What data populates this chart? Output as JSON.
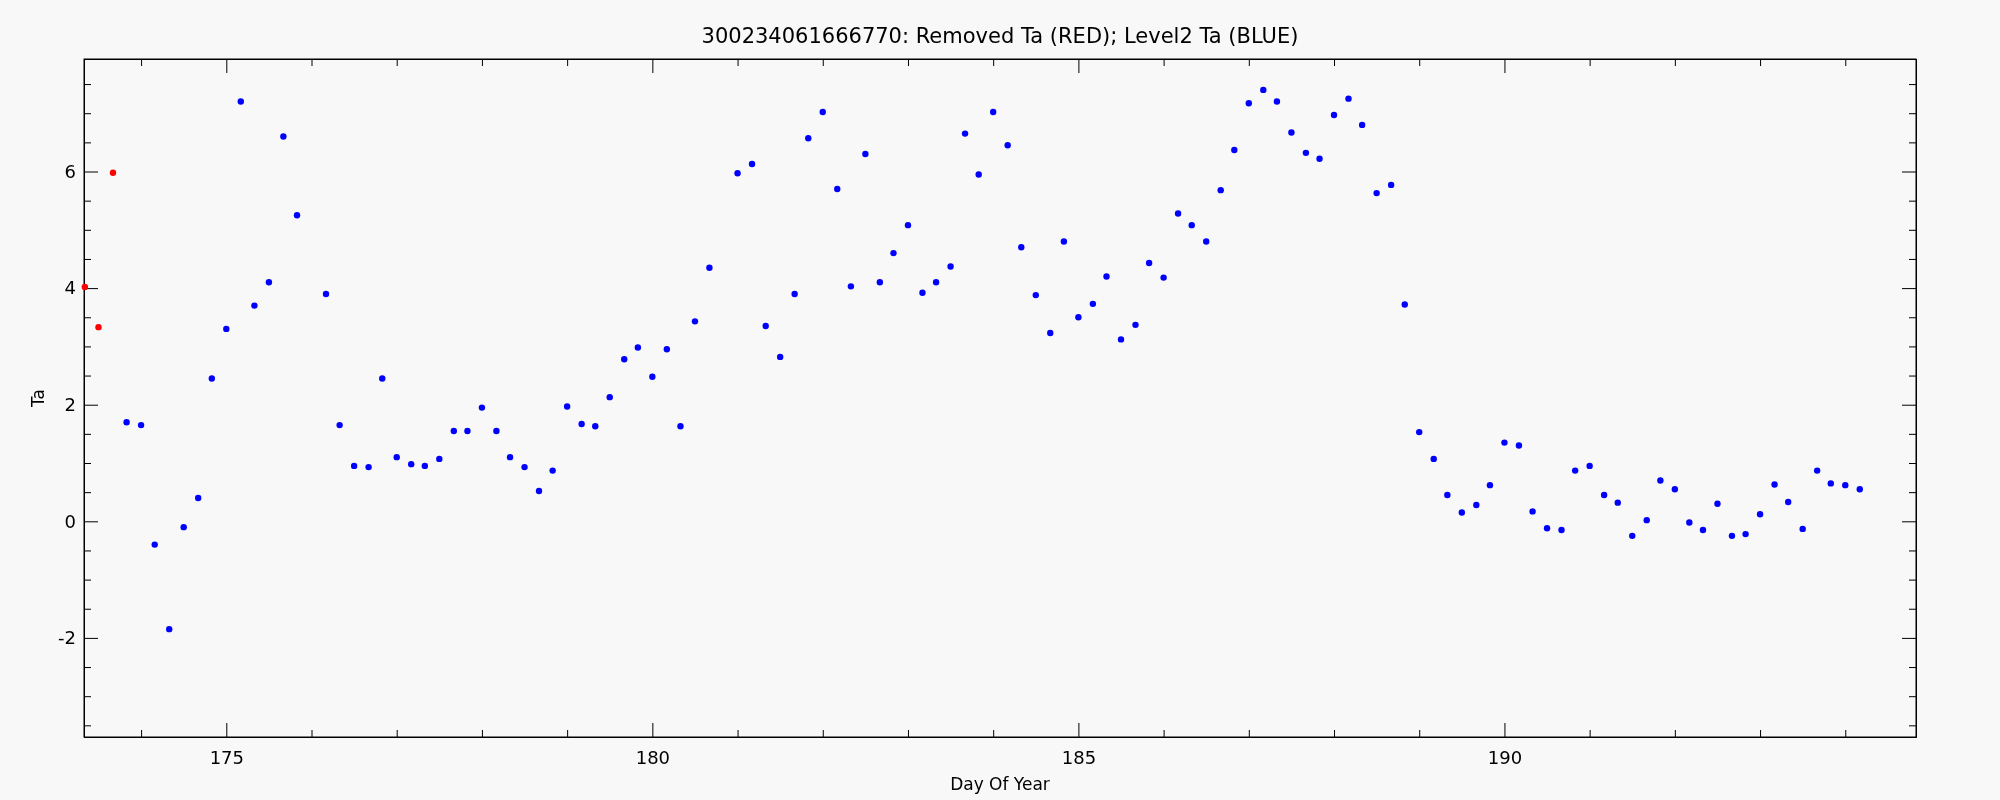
{
  "chart_data": {
    "type": "scatter",
    "title": "300234061666770: Removed Ta (RED); Level2 Ta (BLUE)",
    "xlabel": "Day Of Year",
    "ylabel": "Ta",
    "marker": "circle",
    "grid": false,
    "xlim": [
      173.33,
      194.83
    ],
    "ylim": [
      -3.7,
      7.93
    ],
    "xticks": [
      {
        "value": 174,
        "label": null
      },
      175,
      {
        "value": 176,
        "label": null
      },
      {
        "value": 177,
        "label": null
      },
      {
        "value": 178,
        "label": null
      },
      {
        "value": 179,
        "label": null
      },
      180,
      {
        "value": 181,
        "label": null
      },
      {
        "value": 182,
        "label": null
      },
      {
        "value": 183,
        "label": null
      },
      {
        "value": 184,
        "label": null
      },
      185,
      {
        "value": 186,
        "label": null
      },
      {
        "value": 187,
        "label": null
      },
      {
        "value": 188,
        "label": null
      },
      {
        "value": 189,
        "label": null
      },
      190,
      {
        "value": 191,
        "label": null
      },
      {
        "value": 192,
        "label": null
      },
      {
        "value": 193,
        "label": null
      },
      {
        "value": 194,
        "label": null
      }
    ],
    "yticks": [
      {
        "value": -3.5,
        "label": null
      },
      {
        "value": -3,
        "label": null
      },
      {
        "value": -2.5,
        "label": null
      },
      -2,
      {
        "value": -1.5,
        "label": null
      },
      {
        "value": -1,
        "label": null
      },
      {
        "value": -0.5,
        "label": null
      },
      0,
      {
        "value": 0.5,
        "label": null
      },
      {
        "value": 1,
        "label": null
      },
      {
        "value": 1.5,
        "label": null
      },
      2,
      {
        "value": 2.5,
        "label": null
      },
      {
        "value": 3,
        "label": null
      },
      {
        "value": 3.5,
        "label": null
      },
      4,
      {
        "value": 4.5,
        "label": null
      },
      {
        "value": 5,
        "label": null
      },
      {
        "value": 5.5,
        "label": null
      },
      6,
      {
        "value": 6.5,
        "label": null
      },
      {
        "value": 7,
        "label": null
      },
      {
        "value": 7.5,
        "label": null
      }
    ],
    "series": [
      {
        "color": "#ff0000",
        "x": [
          173.34,
          173.5,
          173.67
        ],
        "values": [
          4.02,
          3.33,
          5.98
        ]
      },
      {
        "color": "#0000ff",
        "x": [
          173.83,
          174.0,
          174.16,
          174.33,
          174.5,
          174.67,
          174.83,
          175.0,
          175.17,
          175.33,
          175.5,
          175.67,
          175.83,
          176.17,
          176.33,
          176.5,
          176.67,
          176.83,
          177.0,
          177.17,
          177.33,
          177.5,
          177.67,
          177.83,
          178.0,
          178.17,
          178.33,
          178.5,
          178.67,
          178.83,
          179.0,
          179.17,
          179.33,
          179.5,
          179.67,
          179.83,
          180.0,
          180.17,
          180.33,
          180.5,
          180.67,
          181.0,
          181.17,
          181.33,
          181.5,
          181.67,
          181.83,
          182.0,
          182.17,
          182.33,
          182.5,
          182.67,
          182.83,
          183.0,
          183.17,
          183.33,
          183.5,
          183.67,
          183.83,
          184.0,
          184.17,
          184.33,
          184.5,
          184.67,
          184.83,
          185.0,
          185.17,
          185.33,
          185.5,
          185.67,
          185.83,
          186.0,
          186.17,
          186.33,
          186.5,
          186.67,
          186.83,
          187.0,
          187.17,
          187.33,
          187.5,
          187.67,
          187.83,
          188.0,
          188.17,
          188.33,
          188.5,
          188.67,
          188.83,
          189.0,
          189.17,
          189.33,
          189.5,
          189.67,
          189.83,
          190.0,
          190.17,
          190.33,
          190.5,
          190.67,
          190.83,
          191.0,
          191.17,
          191.33,
          191.5,
          191.67,
          191.83,
          192.0,
          192.17,
          192.33,
          192.5,
          192.67,
          192.83,
          193.0,
          193.17,
          193.33,
          193.5,
          193.67,
          193.83,
          194.0,
          194.17
        ],
        "values": [
          1.7,
          1.65,
          -0.4,
          -1.85,
          -0.1,
          0.4,
          2.45,
          3.3,
          7.2,
          3.7,
          4.1,
          6.6,
          5.25,
          3.9,
          1.65,
          0.95,
          0.93,
          2.45,
          1.1,
          0.98,
          0.95,
          1.07,
          1.55,
          1.55,
          1.95,
          1.55,
          1.1,
          0.93,
          0.52,
          0.87,
          1.97,
          1.67,
          1.63,
          2.13,
          2.78,
          2.98,
          2.48,
          2.95,
          1.63,
          3.43,
          4.35,
          5.97,
          6.13,
          3.35,
          2.82,
          3.9,
          6.57,
          7.02,
          5.7,
          4.03,
          6.3,
          4.1,
          4.6,
          5.08,
          3.92,
          4.1,
          4.37,
          6.65,
          5.95,
          7.02,
          6.45,
          4.7,
          3.88,
          3.23,
          4.8,
          3.5,
          3.73,
          4.2,
          3.12,
          3.37,
          4.43,
          4.18,
          5.28,
          5.08,
          4.8,
          5.68,
          6.37,
          7.17,
          7.4,
          7.2,
          6.67,
          6.32,
          6.22,
          6.97,
          7.25,
          6.8,
          5.63,
          5.77,
          3.72,
          1.53,
          1.07,
          0.45,
          0.15,
          0.28,
          0.62,
          1.35,
          1.3,
          0.17,
          -0.12,
          -0.15,
          0.87,
          0.95,
          0.45,
          0.32,
          -0.25,
          0.02,
          0.7,
          0.55,
          -0.02,
          -0.15,
          0.3,
          -0.25,
          -0.22,
          0.12,
          0.63,
          0.33,
          -0.13,
          0.87,
          0.65,
          0.62,
          0.55
        ]
      }
    ]
  }
}
